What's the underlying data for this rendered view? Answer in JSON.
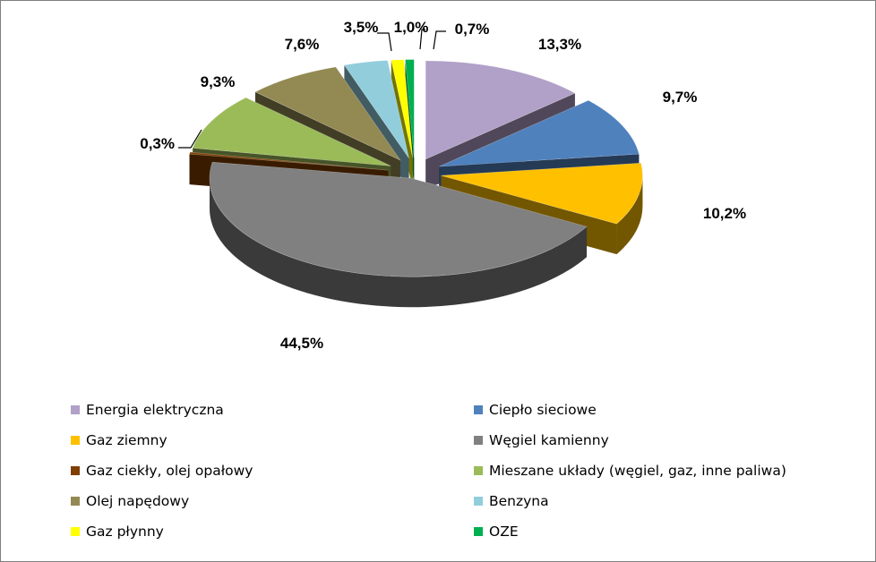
{
  "chart_data": {
    "type": "pie",
    "title": "",
    "labels": [
      "Energia elektryczna",
      "Ciepło sieciowe",
      "Gaz ziemny",
      "Węgiel kamienny",
      "Gaz ciekły, olej opałowy",
      "Mieszane układy (węgiel, gaz, inne paliwa)",
      "Olej napędowy",
      "Benzyna",
      "Gaz płynny",
      "OZE"
    ],
    "values": [
      13.3,
      9.7,
      10.2,
      44.5,
      0.3,
      9.3,
      7.6,
      3.5,
      1.0,
      0.7
    ],
    "value_labels": [
      "13,3%",
      "9,7%",
      "10,2%",
      "44,5%",
      "0,3%",
      "9,3%",
      "7,6%",
      "3,5%",
      "1,0%",
      "0,7%"
    ],
    "colors": [
      "#b1a0c7",
      "#4f81bd",
      "#ffc000",
      "#808080",
      "#7f3f00",
      "#9bbb59",
      "#938953",
      "#92cddc",
      "#ffff00",
      "#00b050"
    ],
    "exploded": true,
    "three_d": true,
    "legend_position": "bottom",
    "legend_columns": 2
  }
}
